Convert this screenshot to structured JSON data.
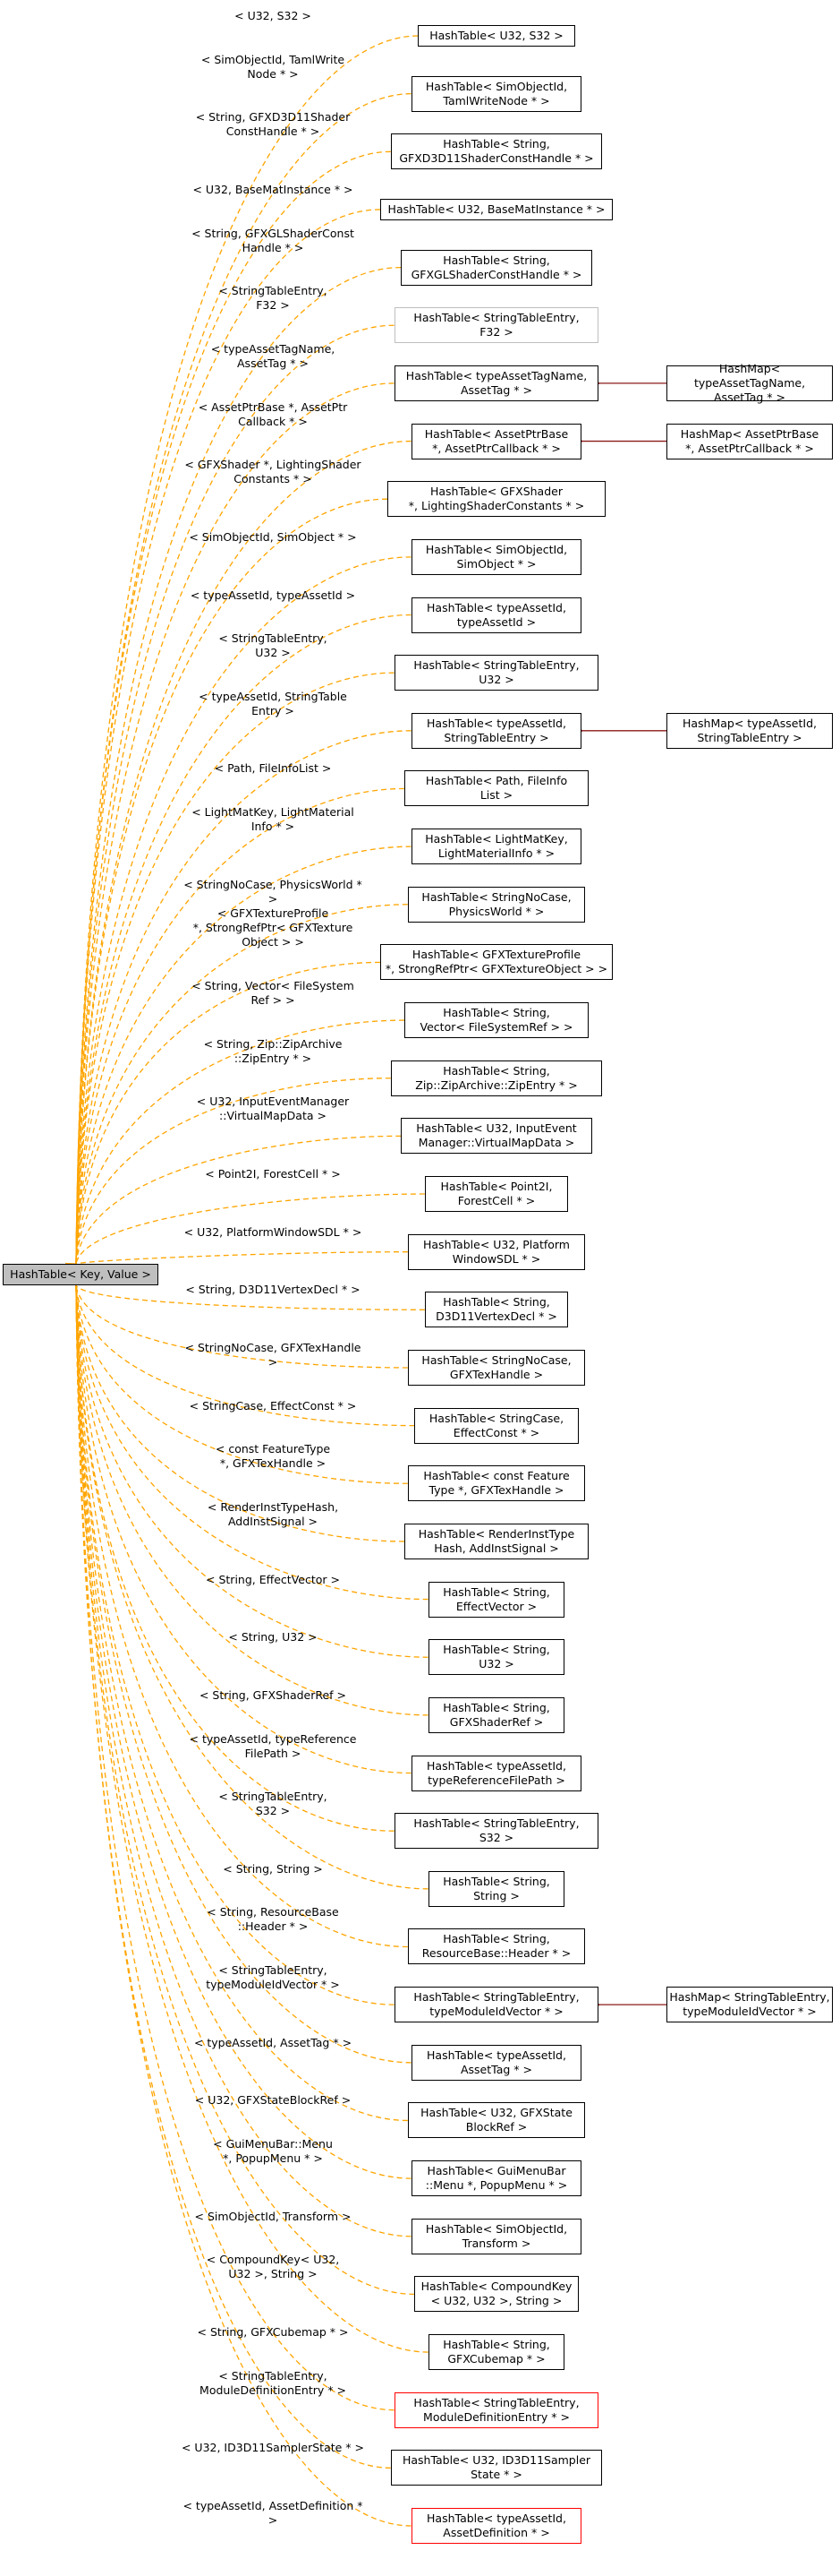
{
  "colors": {
    "edge": "#ffa500",
    "inherit": "#8b1a1a",
    "gray_border": "#bfbfbf",
    "red_border": "#ff0000",
    "root_fill": "#bfbfbf"
  },
  "root": {
    "label": "HashTable< Key, Value >"
  },
  "children": [
    {
      "label": "HashTable< U32, S32 >",
      "edge": "< U32, S32 >",
      "style": "normal"
    },
    {
      "label": "HashTable< SimObjectId,\nTamlWriteNode * >",
      "edge": "< SimObjectId, TamlWrite\nNode * >",
      "style": "normal"
    },
    {
      "label": "HashTable< String,\nGFXD3D11ShaderConstHandle * >",
      "edge": "< String, GFXD3D11Shader\nConstHandle * >",
      "style": "normal"
    },
    {
      "label": "HashTable< U32, BaseMatInstance * >",
      "edge": "< U32, BaseMatInstance * >",
      "style": "normal"
    },
    {
      "label": "HashTable< String,\nGFXGLShaderConstHandle * >",
      "edge": "< String, GFXGLShaderConst\nHandle * >",
      "style": "normal"
    },
    {
      "label": "HashTable< StringTableEntry,\nF32 >",
      "edge": "< StringTableEntry,\nF32 >",
      "style": "gray"
    },
    {
      "label": "HashTable< typeAssetTagName,\nAssetTag * >",
      "edge": "< typeAssetTagName,\nAssetTag * >",
      "style": "normal",
      "derived": "HashMap< typeAssetTagName,\nAssetTag * >"
    },
    {
      "label": "HashTable< AssetPtrBase\n*, AssetPtrCallback * >",
      "edge": "< AssetPtrBase *, AssetPtr\nCallback * >",
      "style": "normal",
      "derived": "HashMap< AssetPtrBase\n*, AssetPtrCallback * >"
    },
    {
      "label": "HashTable< GFXShader\n*, LightingShaderConstants * >",
      "edge": "< GFXShader *, LightingShader\nConstants * >",
      "style": "normal"
    },
    {
      "label": "HashTable< SimObjectId,\nSimObject * >",
      "edge": "< SimObjectId, SimObject * >",
      "style": "normal"
    },
    {
      "label": "HashTable< typeAssetId,\ntypeAssetId >",
      "edge": "< typeAssetId, typeAssetId >",
      "style": "normal"
    },
    {
      "label": "HashTable< StringTableEntry,\nU32 >",
      "edge": "< StringTableEntry,\nU32 >",
      "style": "normal"
    },
    {
      "label": "HashTable< typeAssetId,\nStringTableEntry >",
      "edge": "< typeAssetId, StringTable\nEntry >",
      "style": "normal",
      "derived": "HashMap< typeAssetId,\nStringTableEntry >"
    },
    {
      "label": "HashTable< Path, FileInfo\nList >",
      "edge": "< Path, FileInfoList >",
      "style": "normal"
    },
    {
      "label": "HashTable< LightMatKey,\nLightMaterialInfo * >",
      "edge": "< LightMatKey, LightMaterial\nInfo * >",
      "style": "normal"
    },
    {
      "label": "HashTable< StringNoCase,\nPhysicsWorld * >",
      "edge": "< StringNoCase, PhysicsWorld * >",
      "style": "normal"
    },
    {
      "label": "HashTable< GFXTextureProfile\n*, StrongRefPtr< GFXTextureObject > >",
      "edge": "< GFXTextureProfile\n*, StrongRefPtr< GFXTexture\nObject > >",
      "style": "normal"
    },
    {
      "label": "HashTable< String,\nVector< FileSystemRef > >",
      "edge": "< String, Vector< FileSystem\nRef > >",
      "style": "normal"
    },
    {
      "label": "HashTable< String,\nZip::ZipArchive::ZipEntry * >",
      "edge": "< String, Zip::ZipArchive\n::ZipEntry * >",
      "style": "normal"
    },
    {
      "label": "HashTable< U32, InputEvent\nManager::VirtualMapData >",
      "edge": "< U32, InputEventManager\n::VirtualMapData >",
      "style": "normal"
    },
    {
      "label": "HashTable< Point2I,\nForestCell * >",
      "edge": "< Point2I, ForestCell * >",
      "style": "normal"
    },
    {
      "label": "HashTable< U32, Platform\nWindowSDL * >",
      "edge": "< U32, PlatformWindowSDL * >",
      "style": "normal"
    },
    {
      "label": "HashTable< String,\nD3D11VertexDecl * >",
      "edge": "< String, D3D11VertexDecl * >",
      "style": "normal"
    },
    {
      "label": "HashTable< StringNoCase,\nGFXTexHandle >",
      "edge": "< StringNoCase, GFXTexHandle >",
      "style": "normal"
    },
    {
      "label": "HashTable< StringCase,\nEffectConst * >",
      "edge": "< StringCase, EffectConst * >",
      "style": "normal"
    },
    {
      "label": "HashTable< const Feature\nType *, GFXTexHandle >",
      "edge": "< const FeatureType\n*, GFXTexHandle >",
      "style": "normal"
    },
    {
      "label": "HashTable< RenderInstType\nHash, AddInstSignal >",
      "edge": "< RenderInstTypeHash,\nAddInstSignal >",
      "style": "normal"
    },
    {
      "label": "HashTable< String,\nEffectVector >",
      "edge": "< String, EffectVector >",
      "style": "normal"
    },
    {
      "label": "HashTable< String,\nU32 >",
      "edge": "< String, U32 >",
      "style": "normal"
    },
    {
      "label": "HashTable< String,\nGFXShaderRef >",
      "edge": "< String, GFXShaderRef >",
      "style": "normal"
    },
    {
      "label": "HashTable< typeAssetId,\ntypeReferenceFilePath >",
      "edge": "< typeAssetId, typeReference\nFilePath >",
      "style": "normal"
    },
    {
      "label": "HashTable< StringTableEntry,\nS32 >",
      "edge": "< StringTableEntry,\nS32 >",
      "style": "normal"
    },
    {
      "label": "HashTable< String,\nString >",
      "edge": "< String, String >",
      "style": "normal"
    },
    {
      "label": "HashTable< String,\nResourceBase::Header * >",
      "edge": "< String, ResourceBase\n::Header * >",
      "style": "normal"
    },
    {
      "label": "HashTable< StringTableEntry,\ntypeModuleIdVector * >",
      "edge": "< StringTableEntry,\ntypeModuleIdVector * >",
      "style": "normal",
      "derived": "HashMap< StringTableEntry,\ntypeModuleIdVector * >"
    },
    {
      "label": "HashTable< typeAssetId,\nAssetTag * >",
      "edge": "< typeAssetId, AssetTag * >",
      "style": "normal"
    },
    {
      "label": "HashTable< U32, GFXState\nBlockRef >",
      "edge": "< U32, GFXStateBlockRef >",
      "style": "normal"
    },
    {
      "label": "HashTable< GuiMenuBar\n::Menu *, PopupMenu * >",
      "edge": "< GuiMenuBar::Menu\n*, PopupMenu * >",
      "style": "normal"
    },
    {
      "label": "HashTable< SimObjectId,\nTransform >",
      "edge": "< SimObjectId, Transform >",
      "style": "normal"
    },
    {
      "label": "HashTable< CompoundKey\n< U32, U32 >, String >",
      "edge": "< CompoundKey< U32,\nU32 >, String >",
      "style": "normal"
    },
    {
      "label": "HashTable< String,\nGFXCubemap * >",
      "edge": "< String, GFXCubemap * >",
      "style": "normal"
    },
    {
      "label": "HashTable< StringTableEntry,\nModuleDefinitionEntry * >",
      "edge": "< StringTableEntry,\nModuleDefinitionEntry * >",
      "style": "red"
    },
    {
      "label": "HashTable< U32, ID3D11Sampler\nState * >",
      "edge": "< U32, ID3D11SamplerState * >",
      "style": "normal"
    },
    {
      "label": "HashTable< typeAssetId,\nAssetDefinition * >",
      "edge": "< typeAssetId, AssetDefinition * >",
      "style": "red"
    }
  ]
}
